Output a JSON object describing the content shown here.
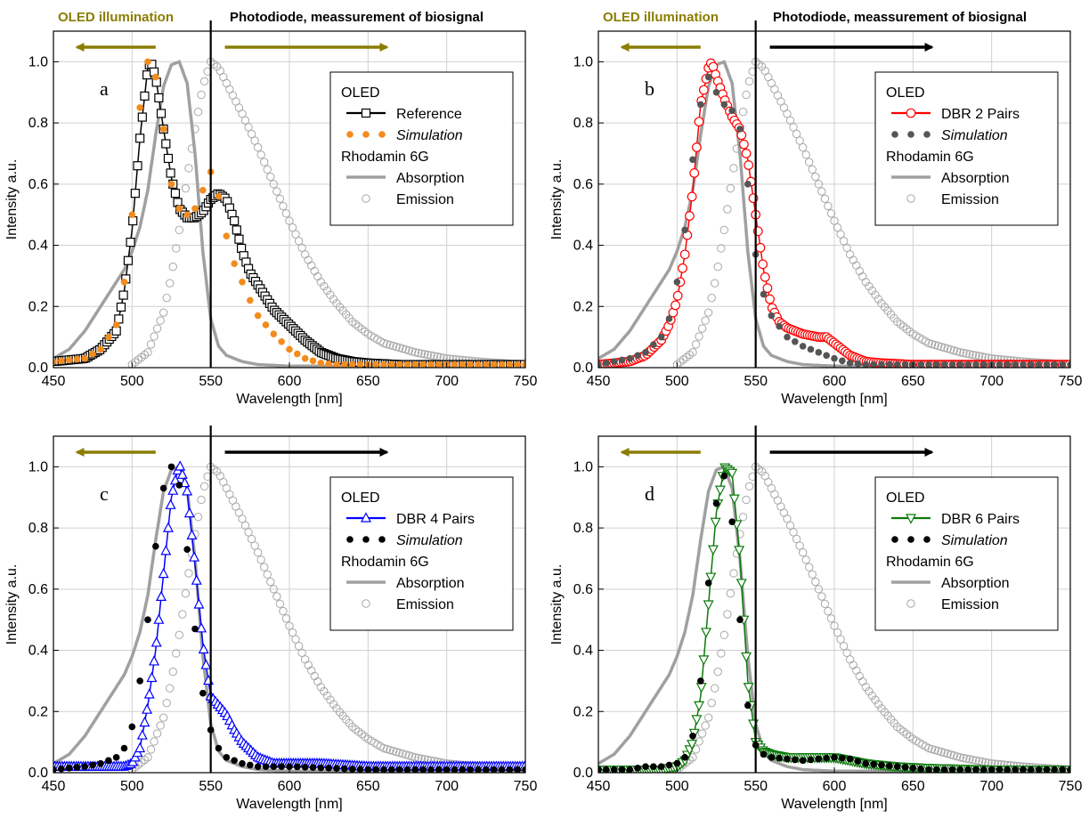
{
  "colors": {
    "olive": "#8a7d00",
    "gray": "#a0a0a0",
    "orange": "#f28c1e",
    "red": "#ff0000",
    "blue": "#0000ff",
    "green": "#0a7a0a",
    "black": "#000000"
  },
  "header": {
    "left": "OLED illumination",
    "right": "Photodiode, meassurement of biosignal"
  },
  "chart_data": [
    {
      "type": "line",
      "panel": "a",
      "xlabel": "Wavelength [nm]",
      "ylabel": "Intensity a.u.",
      "xlim": [
        450,
        750
      ],
      "ylim": [
        0,
        1.1
      ],
      "xticks": [
        450,
        500,
        550,
        600,
        650,
        700,
        750
      ],
      "yticks": [
        0.0,
        0.2,
        0.4,
        0.6,
        0.8,
        1.0
      ],
      "grid": true,
      "divider_x": 550,
      "legend": {
        "group1": "OLED",
        "group2": "Rhodamin 6G",
        "position": "top-right"
      },
      "series": [
        {
          "name": "Reference",
          "role": "device",
          "marker": "square",
          "x": [
            450,
            470,
            480,
            490,
            495,
            500,
            505,
            510,
            512,
            515,
            520,
            525,
            530,
            535,
            540,
            545,
            550,
            555,
            560,
            565,
            570,
            575,
            580,
            590,
            600,
            610,
            620,
            630,
            640,
            650,
            670,
            700,
            750
          ],
          "y": [
            0.02,
            0.03,
            0.06,
            0.12,
            0.25,
            0.45,
            0.75,
            0.98,
            1.0,
            0.95,
            0.78,
            0.62,
            0.52,
            0.49,
            0.49,
            0.51,
            0.55,
            0.57,
            0.55,
            0.48,
            0.38,
            0.31,
            0.27,
            0.19,
            0.14,
            0.09,
            0.05,
            0.03,
            0.02,
            0.015,
            0.01,
            0.01,
            0.01
          ]
        },
        {
          "name": "Simulation",
          "role": "sim",
          "marker": "dot",
          "x": [
            450,
            470,
            480,
            490,
            495,
            500,
            505,
            510,
            515,
            520,
            525,
            530,
            535,
            540,
            545,
            550,
            555,
            560,
            565,
            570,
            575,
            580,
            590,
            600,
            610,
            620,
            630,
            650,
            700,
            750
          ],
          "y": [
            0.02,
            0.03,
            0.06,
            0.14,
            0.28,
            0.5,
            0.85,
            1.0,
            0.95,
            0.78,
            0.6,
            0.52,
            0.5,
            0.52,
            0.58,
            0.64,
            0.56,
            0.43,
            0.34,
            0.28,
            0.22,
            0.17,
            0.11,
            0.06,
            0.03,
            0.015,
            0.01,
            0.01,
            0.01,
            0.01
          ]
        },
        {
          "name": "Absorption",
          "role": "abs",
          "x": [
            450,
            460,
            470,
            480,
            490,
            495,
            500,
            505,
            510,
            515,
            520,
            525,
            530,
            535,
            540,
            545,
            550,
            555,
            560,
            570,
            580,
            600,
            650,
            750
          ],
          "y": [
            0.03,
            0.06,
            0.12,
            0.2,
            0.28,
            0.32,
            0.38,
            0.46,
            0.58,
            0.76,
            0.92,
            0.99,
            1.0,
            0.93,
            0.7,
            0.38,
            0.16,
            0.07,
            0.04,
            0.02,
            0.01,
            0.005,
            0.005,
            0.005
          ]
        },
        {
          "name": "Emission",
          "role": "emi",
          "x": [
            500,
            510,
            520,
            525,
            530,
            535,
            540,
            545,
            550,
            555,
            560,
            570,
            580,
            590,
            600,
            610,
            620,
            630,
            640,
            650,
            660,
            680,
            700,
            720,
            750
          ],
          "y": [
            0.01,
            0.05,
            0.18,
            0.3,
            0.45,
            0.62,
            0.78,
            0.92,
            1.0,
            0.98,
            0.93,
            0.83,
            0.72,
            0.6,
            0.48,
            0.37,
            0.28,
            0.21,
            0.15,
            0.11,
            0.08,
            0.05,
            0.03,
            0.02,
            0.01
          ]
        }
      ]
    },
    {
      "type": "line",
      "panel": "b",
      "xlabel": "Wavelength [nm]",
      "ylabel": "Intensity a.u.",
      "xlim": [
        450,
        750
      ],
      "ylim": [
        0,
        1.1
      ],
      "xticks": [
        450,
        500,
        550,
        600,
        650,
        700,
        750
      ],
      "yticks": [
        0.0,
        0.2,
        0.4,
        0.6,
        0.8,
        1.0
      ],
      "grid": true,
      "divider_x": 550,
      "legend": {
        "group1": "OLED",
        "group2": "Rhodamin 6G",
        "position": "top-right"
      },
      "series": [
        {
          "name": "DBR 2 Pairs",
          "role": "device",
          "marker": "circle",
          "x": [
            450,
            470,
            480,
            490,
            495,
            500,
            505,
            510,
            515,
            520,
            522,
            525,
            530,
            535,
            540,
            545,
            550,
            555,
            560,
            565,
            570,
            580,
            590,
            595,
            600,
            610,
            620,
            630,
            650,
            700,
            750
          ],
          "y": [
            0.01,
            0.02,
            0.04,
            0.09,
            0.14,
            0.22,
            0.37,
            0.58,
            0.86,
            0.98,
            1.0,
            0.95,
            0.88,
            0.82,
            0.78,
            0.68,
            0.5,
            0.32,
            0.2,
            0.15,
            0.13,
            0.11,
            0.1,
            0.1,
            0.08,
            0.04,
            0.02,
            0.015,
            0.01,
            0.01,
            0.01
          ]
        },
        {
          "name": "Simulation",
          "role": "sim",
          "marker": "dot",
          "x": [
            450,
            470,
            480,
            490,
            495,
            500,
            505,
            510,
            515,
            520,
            525,
            530,
            535,
            540,
            545,
            550,
            555,
            560,
            570,
            580,
            590,
            600,
            610,
            620,
            650,
            750
          ],
          "y": [
            0.01,
            0.03,
            0.05,
            0.1,
            0.16,
            0.28,
            0.45,
            0.68,
            0.86,
            0.95,
            0.9,
            0.86,
            0.84,
            0.78,
            0.6,
            0.37,
            0.24,
            0.17,
            0.1,
            0.07,
            0.05,
            0.03,
            0.015,
            0.01,
            0.01,
            0.01
          ]
        },
        {
          "name": "Absorption",
          "role": "abs",
          "x": [
            450,
            460,
            470,
            480,
            490,
            495,
            500,
            505,
            510,
            515,
            520,
            525,
            530,
            535,
            540,
            545,
            550,
            555,
            560,
            570,
            580,
            600,
            650,
            750
          ],
          "y": [
            0.03,
            0.06,
            0.12,
            0.2,
            0.28,
            0.32,
            0.38,
            0.46,
            0.58,
            0.76,
            0.92,
            0.99,
            1.0,
            0.93,
            0.7,
            0.38,
            0.16,
            0.07,
            0.04,
            0.02,
            0.01,
            0.005,
            0.005,
            0.005
          ]
        },
        {
          "name": "Emission",
          "role": "emi",
          "x": [
            500,
            510,
            520,
            525,
            530,
            535,
            540,
            545,
            550,
            555,
            560,
            570,
            580,
            590,
            600,
            610,
            620,
            630,
            640,
            650,
            660,
            680,
            700,
            720,
            750
          ],
          "y": [
            0.01,
            0.05,
            0.18,
            0.3,
            0.45,
            0.62,
            0.78,
            0.92,
            1.0,
            0.98,
            0.93,
            0.83,
            0.72,
            0.6,
            0.48,
            0.37,
            0.28,
            0.21,
            0.15,
            0.11,
            0.08,
            0.05,
            0.03,
            0.02,
            0.01
          ]
        }
      ]
    },
    {
      "type": "line",
      "panel": "c",
      "xlabel": "Wavelength [nm]",
      "ylabel": "Intensity a.u.",
      "xlim": [
        450,
        750
      ],
      "ylim": [
        0,
        1.1
      ],
      "xticks": [
        450,
        500,
        550,
        600,
        650,
        700,
        750
      ],
      "yticks": [
        0.0,
        0.2,
        0.4,
        0.6,
        0.8,
        1.0
      ],
      "grid": true,
      "divider_x": 550,
      "legend": {
        "group1": "OLED",
        "group2": "Rhodamin 6G",
        "position": "top-right"
      },
      "series": [
        {
          "name": "DBR 4 Pairs",
          "role": "device",
          "marker": "triangle-up",
          "x": [
            450,
            480,
            495,
            500,
            505,
            510,
            515,
            520,
            525,
            530,
            535,
            540,
            545,
            550,
            555,
            560,
            565,
            570,
            580,
            590,
            600,
            620,
            650,
            700,
            750
          ],
          "y": [
            0.02,
            0.02,
            0.02,
            0.03,
            0.08,
            0.22,
            0.4,
            0.65,
            0.9,
            1.01,
            0.92,
            0.68,
            0.42,
            0.25,
            0.22,
            0.19,
            0.14,
            0.1,
            0.05,
            0.03,
            0.03,
            0.03,
            0.02,
            0.02,
            0.02
          ]
        },
        {
          "name": "Simulation",
          "role": "sim",
          "marker": "dot",
          "x": [
            450,
            470,
            480,
            490,
            495,
            500,
            505,
            510,
            515,
            520,
            525,
            530,
            535,
            540,
            545,
            550,
            555,
            560,
            570,
            580,
            600,
            650,
            750
          ],
          "y": [
            0.01,
            0.02,
            0.03,
            0.05,
            0.08,
            0.15,
            0.3,
            0.5,
            0.74,
            0.93,
            1.0,
            0.94,
            0.73,
            0.47,
            0.26,
            0.14,
            0.08,
            0.05,
            0.03,
            0.02,
            0.02,
            0.01,
            0.01
          ]
        },
        {
          "name": "Absorption",
          "role": "abs",
          "x": [
            450,
            460,
            470,
            480,
            490,
            495,
            500,
            505,
            510,
            515,
            520,
            525,
            530,
            535,
            540,
            545,
            550,
            555,
            560,
            570,
            580,
            600,
            650,
            750
          ],
          "y": [
            0.03,
            0.06,
            0.12,
            0.2,
            0.28,
            0.32,
            0.38,
            0.46,
            0.58,
            0.76,
            0.92,
            0.99,
            1.0,
            0.93,
            0.7,
            0.38,
            0.16,
            0.07,
            0.04,
            0.02,
            0.01,
            0.005,
            0.005,
            0.005
          ]
        },
        {
          "name": "Emission",
          "role": "emi",
          "x": [
            500,
            510,
            520,
            525,
            530,
            535,
            540,
            545,
            550,
            555,
            560,
            570,
            580,
            590,
            600,
            610,
            620,
            630,
            640,
            650,
            660,
            680,
            700,
            720,
            750
          ],
          "y": [
            0.01,
            0.05,
            0.18,
            0.3,
            0.45,
            0.62,
            0.78,
            0.92,
            1.0,
            0.98,
            0.93,
            0.83,
            0.72,
            0.6,
            0.48,
            0.37,
            0.28,
            0.21,
            0.15,
            0.11,
            0.08,
            0.05,
            0.03,
            0.02,
            0.01
          ]
        }
      ]
    },
    {
      "type": "line",
      "panel": "d",
      "xlabel": "Wavelength [nm]",
      "ylabel": "Intensity a.u.",
      "xlim": [
        450,
        750
      ],
      "ylim": [
        0,
        1.1
      ],
      "xticks": [
        450,
        500,
        550,
        600,
        650,
        700,
        750
      ],
      "yticks": [
        0.0,
        0.2,
        0.4,
        0.6,
        0.8,
        1.0
      ],
      "grid": true,
      "divider_x": 550,
      "legend": {
        "group1": "OLED",
        "group2": "Rhodamin 6G",
        "position": "top-right"
      },
      "series": [
        {
          "name": "DBR 6 Pairs",
          "role": "device",
          "marker": "triangle-down",
          "x": [
            450,
            490,
            500,
            505,
            510,
            515,
            520,
            525,
            530,
            535,
            540,
            545,
            550,
            555,
            560,
            570,
            580,
            590,
            600,
            610,
            620,
            640,
            660,
            700,
            750
          ],
          "y": [
            0.01,
            0.01,
            0.02,
            0.04,
            0.1,
            0.25,
            0.55,
            0.85,
            1.0,
            0.98,
            0.7,
            0.3,
            0.1,
            0.07,
            0.06,
            0.05,
            0.05,
            0.05,
            0.05,
            0.04,
            0.03,
            0.02,
            0.015,
            0.01,
            0.01
          ]
        },
        {
          "name": "Simulation",
          "role": "sim",
          "marker": "dot",
          "x": [
            450,
            470,
            480,
            490,
            500,
            505,
            510,
            515,
            520,
            525,
            530,
            535,
            540,
            545,
            550,
            555,
            560,
            570,
            580,
            590,
            600,
            610,
            620,
            640,
            660,
            700,
            750
          ],
          "y": [
            0.01,
            0.01,
            0.02,
            0.02,
            0.03,
            0.05,
            0.12,
            0.3,
            0.62,
            0.88,
            0.97,
            0.82,
            0.5,
            0.22,
            0.09,
            0.06,
            0.05,
            0.045,
            0.04,
            0.045,
            0.05,
            0.045,
            0.03,
            0.02,
            0.01,
            0.01,
            0.01
          ]
        },
        {
          "name": "Absorption",
          "role": "abs",
          "x": [
            450,
            460,
            470,
            480,
            490,
            495,
            500,
            505,
            510,
            515,
            520,
            525,
            530,
            535,
            540,
            545,
            550,
            555,
            560,
            570,
            580,
            600,
            650,
            750
          ],
          "y": [
            0.03,
            0.06,
            0.12,
            0.2,
            0.28,
            0.32,
            0.38,
            0.46,
            0.58,
            0.76,
            0.92,
            0.99,
            1.0,
            0.93,
            0.7,
            0.38,
            0.16,
            0.07,
            0.04,
            0.02,
            0.01,
            0.005,
            0.005,
            0.005
          ]
        },
        {
          "name": "Emission",
          "role": "emi",
          "x": [
            500,
            510,
            520,
            525,
            530,
            535,
            540,
            545,
            550,
            555,
            560,
            570,
            580,
            590,
            600,
            610,
            620,
            630,
            640,
            650,
            660,
            680,
            700,
            720,
            750
          ],
          "y": [
            0.01,
            0.05,
            0.18,
            0.3,
            0.45,
            0.62,
            0.78,
            0.92,
            1.0,
            0.98,
            0.93,
            0.83,
            0.72,
            0.6,
            0.48,
            0.37,
            0.28,
            0.21,
            0.15,
            0.11,
            0.08,
            0.05,
            0.03,
            0.02,
            0.01
          ]
        }
      ]
    }
  ]
}
